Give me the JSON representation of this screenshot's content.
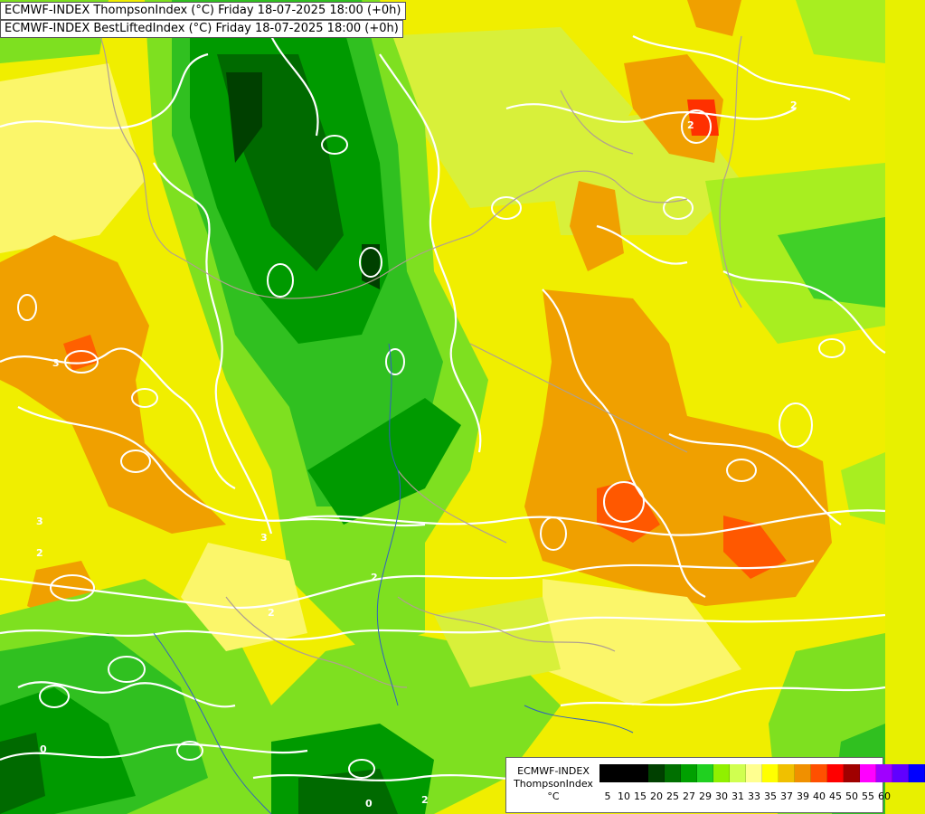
{
  "titles": {
    "line1": "ECMWF-INDEX ThompsonIndex (°C) Friday 18-07-2025 18:00 (+0h)",
    "line2": "ECMWF-INDEX BestLiftedIndex (°C) Friday 18-07-2025 18:00 (+0h)"
  },
  "legend": {
    "model": "ECMWF-INDEX",
    "field": "ThompsonIndex",
    "unit": "°C",
    "scale": [
      {
        "label": "5",
        "color": "#000000"
      },
      {
        "label": "10",
        "color": "#000000"
      },
      {
        "label": "15",
        "color": "#000000"
      },
      {
        "label": "20",
        "color": "#004000"
      },
      {
        "label": "25",
        "color": "#007000"
      },
      {
        "label": "27",
        "color": "#00a000"
      },
      {
        "label": "29",
        "color": "#20d020"
      },
      {
        "label": "30",
        "color": "#90f000"
      },
      {
        "label": "31",
        "color": "#d0ff50"
      },
      {
        "label": "33",
        "color": "#ffff90"
      },
      {
        "label": "35",
        "color": "#ffff00"
      },
      {
        "label": "37",
        "color": "#f0c000"
      },
      {
        "label": "39",
        "color": "#f09000"
      },
      {
        "label": "40",
        "color": "#ff5000"
      },
      {
        "label": "45",
        "color": "#ff0000"
      },
      {
        "label": "50",
        "color": "#a00000"
      },
      {
        "label": "55",
        "color": "#ff00ff"
      },
      {
        "label": "60",
        "color": "#a000ff"
      },
      {
        "label": "",
        "color": "#6000ff"
      },
      {
        "label": "",
        "color": "#0000ff"
      }
    ]
  },
  "contour_labels": [
    "2",
    "3",
    "2",
    "2",
    "2",
    "3",
    "2",
    "0",
    "0",
    "2",
    "3"
  ]
}
